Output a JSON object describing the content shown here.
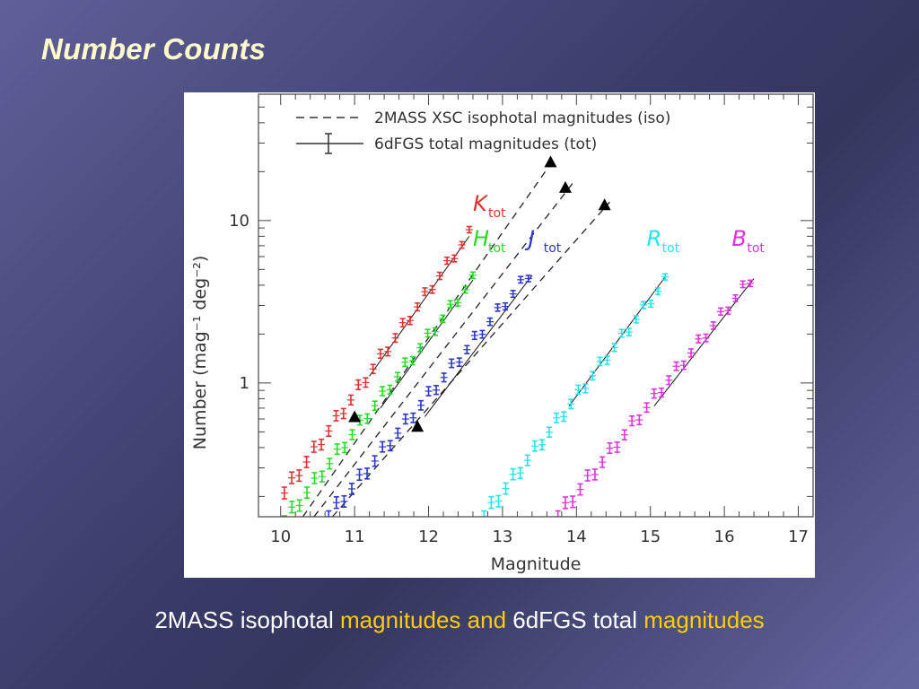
{
  "title": "Number Counts",
  "caption": {
    "part1": "2MASS isophotal ",
    "part2": "magnitudes and ",
    "part3": "6dFGS total ",
    "part4": "magnitudes"
  },
  "colors": {
    "highlight": "#ffcc00",
    "K": "#e03030",
    "H": "#22dd22",
    "J": "#2a36cc",
    "R": "#1fe6ee",
    "B": "#e030e0"
  },
  "chart_data": {
    "type": "scatter",
    "xlabel": "Magnitude",
    "ylabel": "Number (mag⁻¹ deg⁻²)",
    "xlim": [
      9.7,
      17.2
    ],
    "ylim": [
      0.15,
      60
    ],
    "yscale": "log",
    "xticks": [
      10,
      11,
      12,
      13,
      14,
      15,
      16,
      17
    ],
    "yticks": [
      1,
      10
    ],
    "legend": {
      "position": "top-left",
      "entries": [
        {
          "style": "dashed",
          "label": "2MASS XSC isophotal magnitudes (iso)"
        },
        {
          "style": "errorbar",
          "label": "6dFGS total magnitudes (tot)"
        }
      ]
    },
    "band_labels": [
      {
        "band": "K",
        "sub": "tot",
        "x": 12.6,
        "y": 11.5
      },
      {
        "band": "H",
        "sub": "tot",
        "x": 12.6,
        "y": 7.0
      },
      {
        "band": "J",
        "sub": "tot",
        "x": 13.35,
        "y": 7.0
      },
      {
        "band": "R",
        "sub": "tot",
        "x": 14.95,
        "y": 7.0
      },
      {
        "band": "B",
        "sub": "tot",
        "x": 16.1,
        "y": 7.0
      }
    ],
    "iso_lines": [
      {
        "band": "K",
        "x": [
          10.3,
          13.7
        ],
        "y": [
          0.15,
          24
        ],
        "triangles": [
          [
            11.0,
            0.62
          ],
          [
            13.65,
            23
          ]
        ]
      },
      {
        "band": "H",
        "x": [
          10.45,
          13.95
        ],
        "y": [
          0.15,
          17
        ],
        "triangles": [
          [
            13.85,
            16
          ]
        ]
      },
      {
        "band": "J",
        "x": [
          10.7,
          14.45
        ],
        "y": [
          0.15,
          13
        ],
        "triangles": [
          [
            11.85,
            0.54
          ],
          [
            14.38,
            12.5
          ]
        ]
      }
    ],
    "tot_fits": [
      {
        "band": "K",
        "x": [
          11.2,
          12.55
        ],
        "y": [
          1.1,
          8.0
        ]
      },
      {
        "band": "H",
        "x": [
          11.35,
          12.6
        ],
        "y": [
          0.7,
          4.3
        ]
      },
      {
        "band": "J",
        "x": [
          11.95,
          13.4
        ],
        "y": [
          0.62,
          4.6
        ]
      },
      {
        "band": "R",
        "x": [
          13.9,
          15.2
        ],
        "y": [
          0.72,
          4.5
        ]
      },
      {
        "band": "B",
        "x": [
          15.05,
          16.4
        ],
        "y": [
          0.72,
          4.4
        ]
      }
    ],
    "series": [
      {
        "band": "K",
        "x0": 10.05,
        "x1": 12.55,
        "n": 26,
        "y0": 0.21,
        "y1": 8.2
      },
      {
        "band": "H",
        "x0": 10.05,
        "x1": 12.6,
        "n": 26,
        "y0": 0.14,
        "y1": 4.3
      },
      {
        "band": "J",
        "x0": 10.65,
        "x1": 13.35,
        "n": 27,
        "y0": 0.15,
        "y1": 4.6
      },
      {
        "band": "R",
        "x0": 12.75,
        "x1": 15.2,
        "n": 26,
        "y0": 0.15,
        "y1": 4.2
      },
      {
        "band": "B",
        "x0": 13.75,
        "x1": 16.35,
        "n": 27,
        "y0": 0.15,
        "y1": 4.3
      }
    ]
  }
}
